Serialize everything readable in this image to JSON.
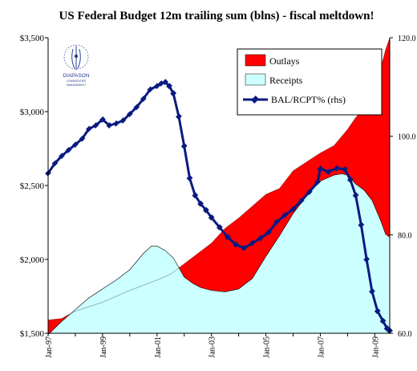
{
  "chart_data": {
    "type": "area",
    "title": "US Federal Budget 12m trailing sum (blns) - fiscal meltdown!",
    "xlabel": "",
    "ylabel": "",
    "ylim": [
      1500,
      3500
    ],
    "y2lim": [
      60,
      120
    ],
    "y_ticks": [
      "$1,500",
      "$2,000",
      "$2,500",
      "$3,000",
      "$3,500"
    ],
    "y_tick_values": [
      1500,
      2000,
      2500,
      3000,
      3500
    ],
    "y2_ticks": [
      "60.0",
      "80.0",
      "100.0",
      "120.0"
    ],
    "y2_tick_values": [
      60,
      80,
      100,
      120
    ],
    "x_ticks": [
      "Jan-97",
      "Jan-99",
      "Jan-01",
      "Jan-03",
      "Jan-05",
      "Jan-07",
      "Jan-09"
    ],
    "x_tick_values": [
      1997.0,
      1999.0,
      2001.0,
      2003.0,
      2005.0,
      2007.0,
      2009.0
    ],
    "xlim": [
      1997.0,
      2009.55
    ],
    "grid": false,
    "legend_position": "top-right",
    "series": [
      {
        "name": "Outlays",
        "kind": "area",
        "color": "#ff0000",
        "x": [
          1997.0,
          1997.5,
          1998.0,
          1999.0,
          2000.0,
          2001.0,
          2001.5,
          2002.0,
          2002.5,
          2003.0,
          2003.5,
          2004.0,
          2004.5,
          2005.0,
          2005.5,
          2006.0,
          2006.5,
          2007.0,
          2007.5,
          2008.0,
          2008.3,
          2008.6,
          2008.9,
          2009.2,
          2009.4,
          2009.55
        ],
        "values": [
          1590,
          1600,
          1650,
          1710,
          1790,
          1860,
          1900,
          1970,
          2040,
          2110,
          2210,
          2280,
          2360,
          2440,
          2480,
          2600,
          2660,
          2720,
          2770,
          2880,
          2960,
          3020,
          3120,
          3280,
          3420,
          3510
        ]
      },
      {
        "name": "Receipts",
        "kind": "area",
        "color": "#ccffff",
        "x": [
          1997.0,
          1997.5,
          1998.0,
          1998.5,
          1999.0,
          1999.5,
          2000.0,
          2000.5,
          2000.8,
          2001.0,
          2001.3,
          2001.6,
          2002.0,
          2002.3,
          2002.6,
          2003.0,
          2003.5,
          2004.0,
          2004.5,
          2005.0,
          2005.5,
          2006.0,
          2006.5,
          2007.0,
          2007.5,
          2007.8,
          2008.0,
          2008.3,
          2008.6,
          2008.9,
          2009.2,
          2009.4,
          2009.55
        ],
        "values": [
          1490,
          1580,
          1660,
          1740,
          1800,
          1860,
          1930,
          2040,
          2090,
          2090,
          2060,
          2010,
          1880,
          1840,
          1810,
          1790,
          1780,
          1800,
          1870,
          2020,
          2160,
          2310,
          2430,
          2530,
          2570,
          2580,
          2570,
          2510,
          2470,
          2400,
          2270,
          2170,
          2150
        ]
      },
      {
        "name": "BAL/RCPT% (rhs)",
        "kind": "line",
        "axis": "right",
        "color": "#0a1a80",
        "x": [
          1997.0,
          1997.25,
          1997.5,
          1997.75,
          1998.0,
          1998.25,
          1998.5,
          1998.75,
          1999.0,
          1999.25,
          1999.5,
          1999.75,
          2000.0,
          2000.25,
          2000.5,
          2000.75,
          2001.0,
          2001.15,
          2001.3,
          2001.45,
          2001.6,
          2001.8,
          2002.0,
          2002.2,
          2002.4,
          2002.6,
          2002.8,
          2003.0,
          2003.3,
          2003.6,
          2003.9,
          2004.2,
          2004.5,
          2004.8,
          2005.1,
          2005.4,
          2005.7,
          2006.0,
          2006.3,
          2006.6,
          2006.9,
          2007.0,
          2007.3,
          2007.6,
          2007.9,
          2008.1,
          2008.3,
          2008.5,
          2008.7,
          2008.9,
          2009.1,
          2009.3,
          2009.45,
          2009.55
        ],
        "values": [
          92.5,
          94.5,
          96,
          97.2,
          98.3,
          99.5,
          101.5,
          102.2,
          103.4,
          102.2,
          102.6,
          103.2,
          104.5,
          105.9,
          107.6,
          109.5,
          110.2,
          110.7,
          111.0,
          110.2,
          108.7,
          104.0,
          98.0,
          91.5,
          88.0,
          86.3,
          85.0,
          83.5,
          81.5,
          79.5,
          78.0,
          77.3,
          78.3,
          79.3,
          80.5,
          82.6,
          84.0,
          85.2,
          86.9,
          88.7,
          90.7,
          93.4,
          92.8,
          93.5,
          93.3,
          91.2,
          88.0,
          82.0,
          75.0,
          68.5,
          64.5,
          62.5,
          61.0,
          60.5
        ]
      }
    ]
  }
}
